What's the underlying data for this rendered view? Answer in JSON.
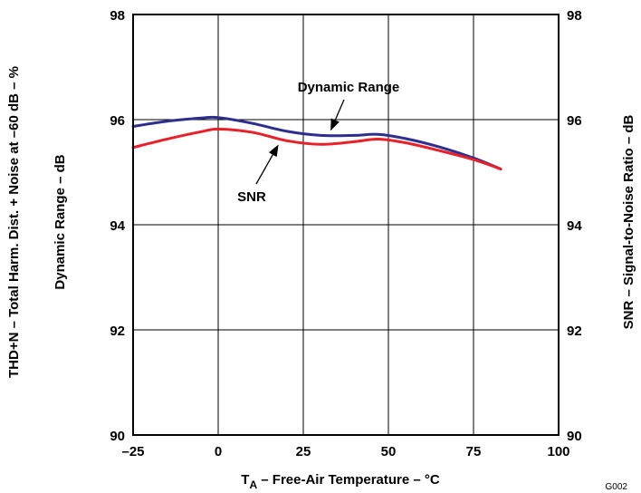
{
  "chart_data": {
    "type": "line",
    "xlabel_main": "T",
    "xlabel_sub": "A",
    "xlabel_rest": " – Free-Air Temperature – °C",
    "ylabel_left_1": "THD+N – Total Harm. Dist. + Noise at –60 dB – %",
    "ylabel_left_2": "Dynamic Range – dB",
    "ylabel_right": "SNR – Signal-to-Noise Ratio – dB",
    "xlim": [
      -25,
      100
    ],
    "ylim": [
      90,
      98
    ],
    "x_ticks": [
      "–25",
      "0",
      "25",
      "50",
      "75",
      "100"
    ],
    "y_ticks": [
      "90",
      "92",
      "94",
      "96",
      "98"
    ],
    "grid": true,
    "figure_code": "G002",
    "series": [
      {
        "name": "Dynamic Range",
        "color": "#2e2e8f",
        "x": [
          -25,
          -15,
          -5,
          0,
          10,
          20,
          30,
          40,
          47,
          55,
          65,
          75,
          83
        ],
        "y": [
          95.87,
          95.97,
          96.03,
          96.04,
          95.93,
          95.78,
          95.7,
          95.7,
          95.72,
          95.64,
          95.48,
          95.27,
          95.06
        ]
      },
      {
        "name": "SNR",
        "color": "#e8202a",
        "x": [
          -25,
          -15,
          -5,
          0,
          10,
          20,
          30,
          40,
          47,
          55,
          65,
          75,
          83
        ],
        "y": [
          95.47,
          95.63,
          95.77,
          95.82,
          95.76,
          95.6,
          95.53,
          95.58,
          95.63,
          95.56,
          95.41,
          95.24,
          95.06
        ]
      }
    ],
    "annotations": [
      {
        "text": "Dynamic Range",
        "series": 0,
        "x": 33
      },
      {
        "text": "SNR",
        "series": 1,
        "x": 18
      }
    ]
  }
}
